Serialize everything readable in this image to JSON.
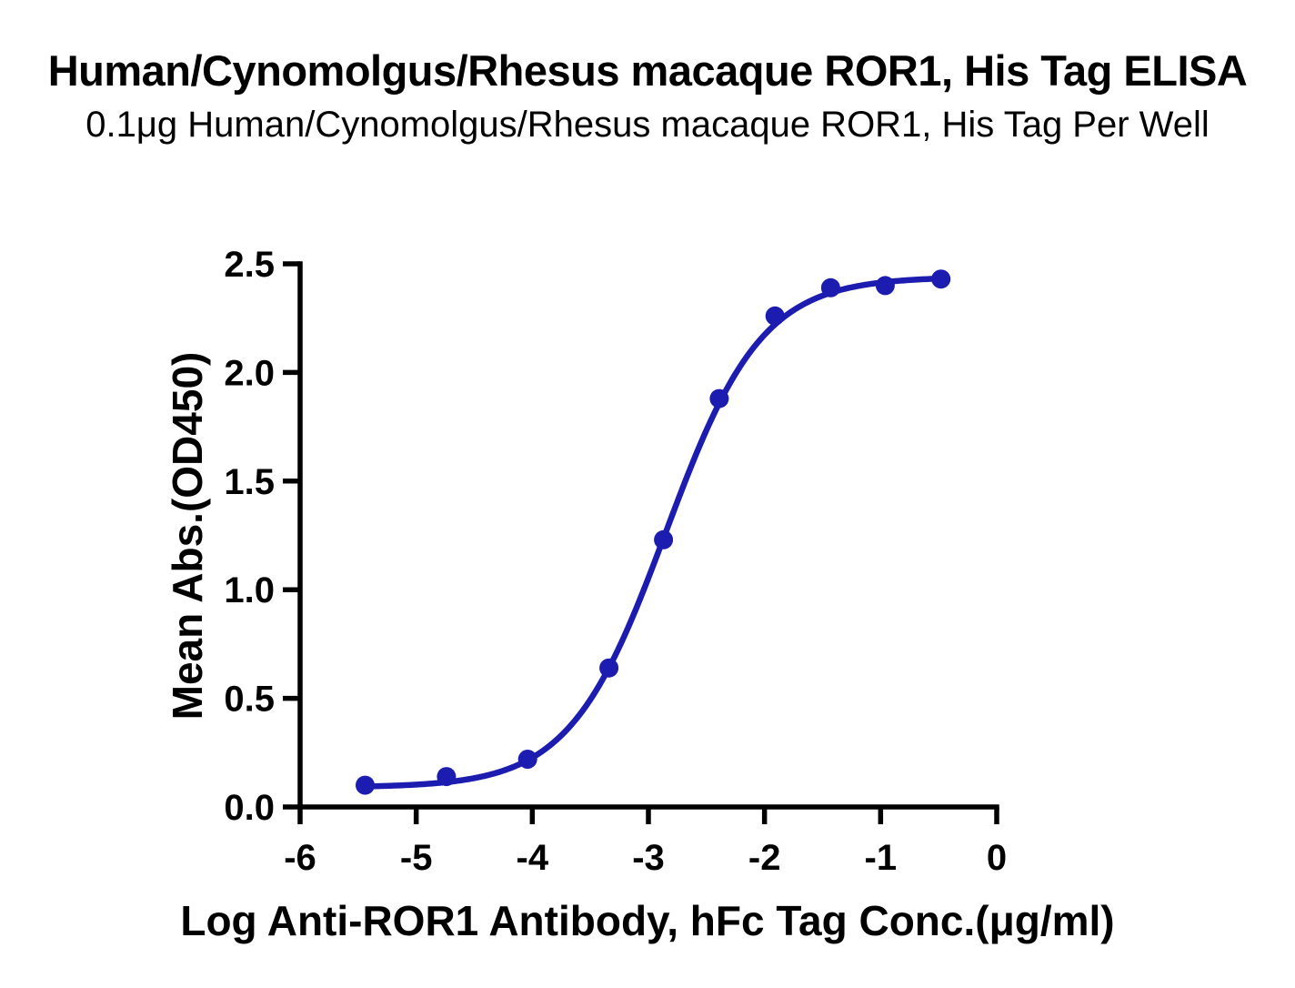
{
  "chart_data": {
    "type": "line",
    "title": "Human/Cynomolgus/Rhesus macaque ROR1, His Tag ELISA",
    "subtitle": "0.1μg Human/Cynomolgus/Rhesus macaque ROR1, His Tag Per Well",
    "xlabel": "Log Anti-ROR1 Antibody, hFc Tag Conc.(μg/ml)",
    "ylabel": "Mean Abs.(OD450)",
    "xlim": [
      -6,
      0
    ],
    "ylim": [
      0,
      2.5
    ],
    "x_tick_values": [
      -6,
      -5,
      -4,
      -3,
      -2,
      -1,
      0
    ],
    "x_tick_labels": [
      "-6",
      "-5",
      "-4",
      "-3",
      "-2",
      "-1",
      "0"
    ],
    "y_tick_values": [
      0,
      0.5,
      1,
      1.5,
      2,
      2.5
    ],
    "y_tick_labels": [
      "0.0",
      "0.5",
      "1.0",
      "1.5",
      "2.0",
      "2.5"
    ],
    "grid": false,
    "legend": "none",
    "axis_color": "#000000",
    "series": [
      {
        "marker": "circle",
        "color": "#1C1CB0",
        "x": [
          -5.44,
          -4.74,
          -4.04,
          -3.34,
          -2.87,
          -2.39,
          -1.91,
          -1.43,
          -0.96,
          -0.48
        ],
        "y": [
          0.1,
          0.14,
          0.22,
          0.64,
          1.23,
          1.88,
          2.26,
          2.39,
          2.4,
          2.43
        ]
      }
    ],
    "fit_curve": {
      "model": "4PL",
      "bottom": 0.09,
      "top": 2.44,
      "log_ec50": -2.85,
      "hill": 1.05
    }
  }
}
